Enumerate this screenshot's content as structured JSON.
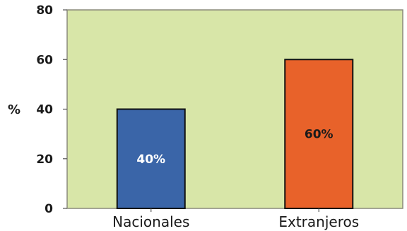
{
  "chart_data": {
    "type": "bar",
    "title": "",
    "xlabel": "",
    "ylabel": "%",
    "ylim": [
      0,
      80
    ],
    "yticks": [
      0,
      20,
      40,
      60,
      80
    ],
    "grid": false,
    "categories": [
      "Nacionales",
      "Extranjeros"
    ],
    "values": [
      40,
      60
    ],
    "data_labels": [
      "40%",
      "60%"
    ],
    "bar_colors": [
      "#3a65a8",
      "#e8622a"
    ],
    "data_label_colors": [
      "#ffffff",
      "#1a1a1a"
    ],
    "plot_background": "#d8e6a8"
  }
}
